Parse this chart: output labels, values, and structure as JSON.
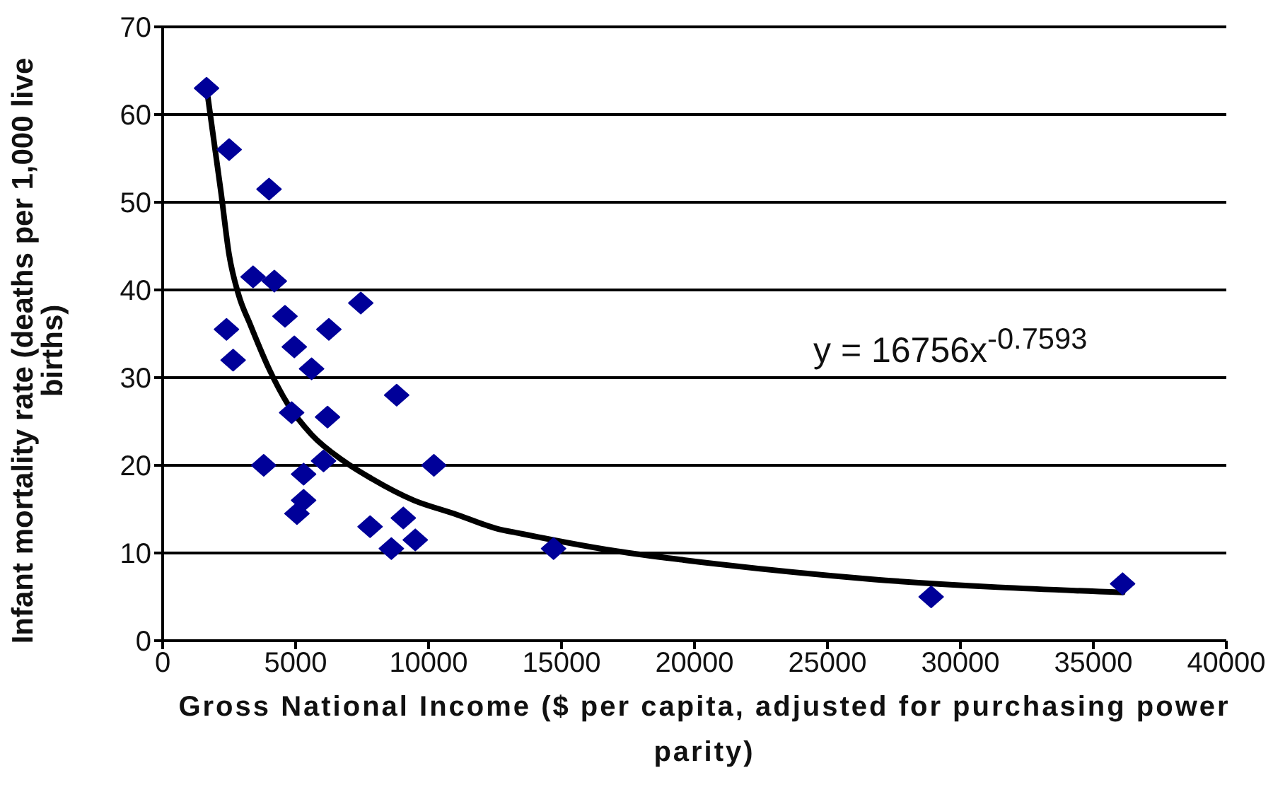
{
  "chart_data": {
    "type": "scatter",
    "xlabel": "Gross National Income ($ per capita, adjusted for purchasing power parity)",
    "ylabel": "Infant mortality rate (deaths per 1,000 live births)",
    "annotations": [
      "y = 16756x$^{-0.7593}$"
    ],
    "xlim": [
      0,
      40000
    ],
    "xticks": [
      0,
      5000,
      10000,
      15000,
      20000,
      25000,
      30000,
      35000,
      40000
    ],
    "ylim": [
      0,
      70
    ],
    "yticks": [
      0,
      10,
      20,
      30,
      40,
      50,
      60,
      70
    ],
    "grid": "y",
    "marker": "diamond",
    "series": [
      {
        "color": "#000099",
        "x": [
          1650,
          2500,
          4000,
          3400,
          4200,
          7450,
          4600,
          2400,
          6250,
          4950,
          2650,
          5600,
          8800,
          4850,
          6200,
          3800,
          6050,
          10200,
          5300,
          5300,
          5050,
          7800,
          9050,
          9500,
          8600,
          14700,
          28900,
          36100
        ],
        "values": [
          63,
          56,
          51.5,
          41.5,
          41,
          38.5,
          37,
          35.5,
          35.5,
          33.5,
          32,
          31,
          28,
          26,
          25.5,
          20,
          20.5,
          20,
          19,
          16,
          14.5,
          13,
          14,
          11.5,
          10.5,
          10.5,
          5,
          6.5
        ]
      },
      {
        "type": "line",
        "color": "#000000",
        "marker": "none",
        "line_style": "solid",
        "x": [
          1700,
          2200,
          2500,
          2850,
          3300,
          4000,
          4700,
          5600,
          6800,
          7850,
          9450,
          10950,
          12550,
          13500,
          17100,
          19600,
          26700,
          36100
        ],
        "values": [
          62,
          51,
          44,
          39.5,
          36,
          31,
          27,
          23.5,
          20.5,
          18.5,
          16,
          14.5,
          12.8,
          12.2,
          10.2,
          9.2,
          7,
          5.5
        ]
      }
    ]
  }
}
